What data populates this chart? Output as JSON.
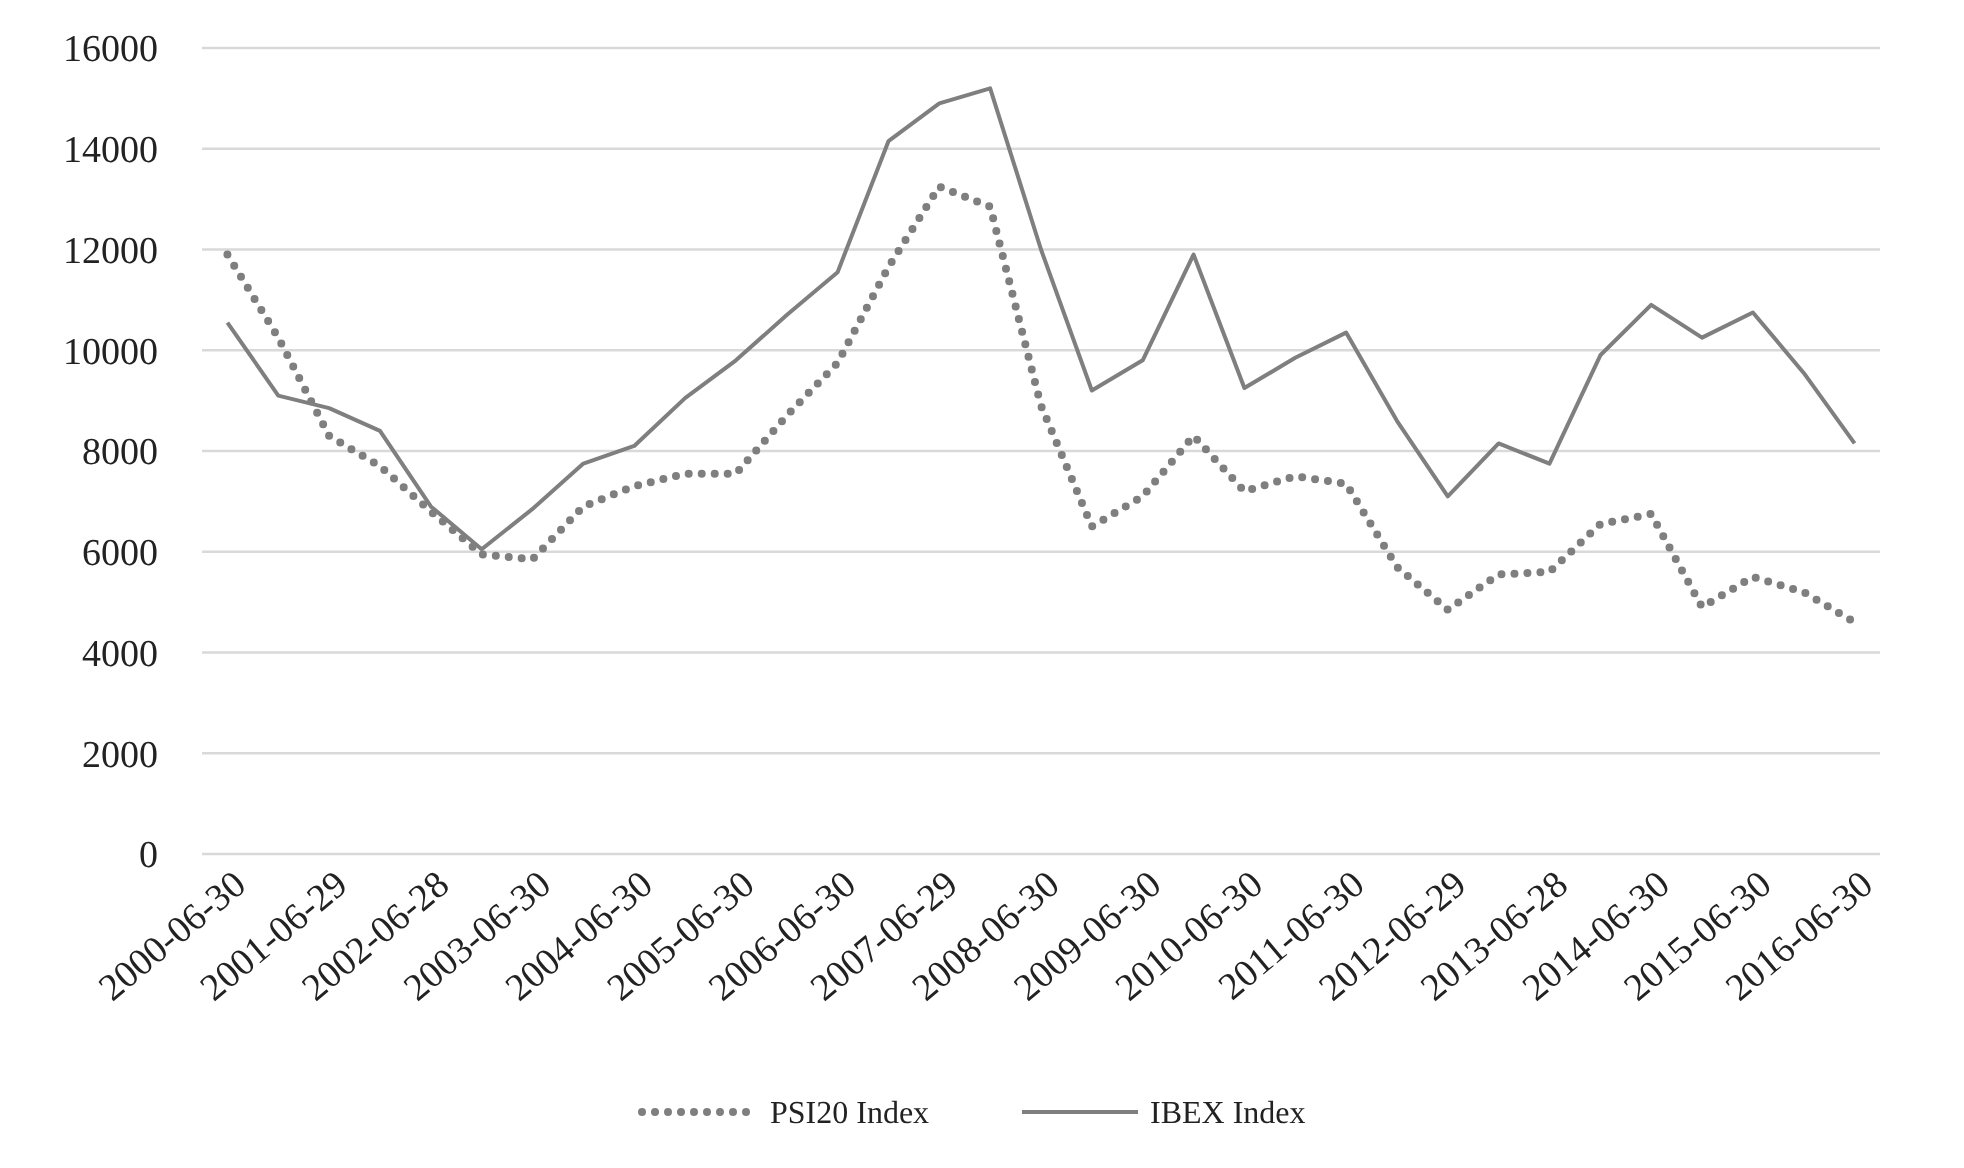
{
  "chart_data": {
    "type": "line",
    "categories": [
      "2000-06-30",
      null,
      "2001-06-29",
      null,
      "2002-06-28",
      null,
      "2003-06-30",
      null,
      "2004-06-30",
      null,
      "2005-06-30",
      null,
      "2006-06-30",
      null,
      "2007-06-29",
      null,
      "2008-06-30",
      null,
      "2009-06-30",
      null,
      "2010-06-30",
      null,
      "2011-06-30",
      null,
      "2012-06-29",
      null,
      "2013-06-28",
      null,
      "2014-06-30",
      null,
      "2015-06-30",
      null,
      "2016-06-30"
    ],
    "series": [
      {
        "name": "PSI20 Index",
        "color": "#7f7f7f",
        "line_style": "dotted",
        "values": [
          11900,
          10250,
          8300,
          7700,
          6800,
          5950,
          5850,
          6900,
          7300,
          7550,
          7550,
          8700,
          9750,
          11650,
          13250,
          12850,
          8900,
          6500,
          7100,
          8300,
          7200,
          7500,
          7350,
          5700,
          4850,
          5550,
          5600,
          6550,
          6750,
          4900,
          5500,
          5200,
          4600
        ]
      },
      {
        "name": "IBEX Index",
        "color": "#7f7f7f",
        "line_style": "solid",
        "values": [
          10550,
          9100,
          8850,
          8400,
          6900,
          6050,
          6850,
          7750,
          8100,
          9050,
          9800,
          10700,
          11550,
          14150,
          14900,
          15200,
          12000,
          9200,
          9800,
          11900,
          9250,
          9850,
          10350,
          8600,
          7100,
          8150,
          7750,
          9900,
          10900,
          10250,
          10750,
          9550,
          8150
        ]
      }
    ],
    "ylim": [
      0,
      16000
    ],
    "yticks": [
      0,
      2000,
      4000,
      6000,
      8000,
      10000,
      12000,
      14000,
      16000
    ],
    "grid": "y",
    "legend": "bottom",
    "marker": "none"
  }
}
